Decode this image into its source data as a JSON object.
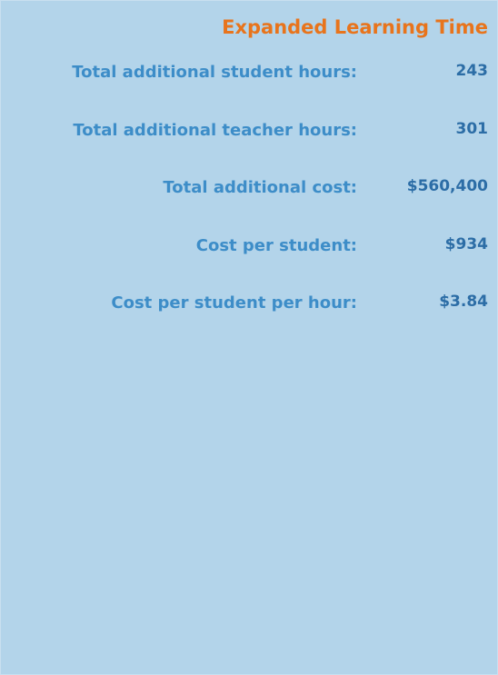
{
  "title": "Expanded Learning Time",
  "rows": [
    {
      "label": "Total additional student hours:",
      "value": "243"
    },
    {
      "label": "Total additional teacher hours:",
      "value": "301"
    },
    {
      "label": "Total additional cost:",
      "value": "$560,400"
    },
    {
      "label": "Cost per student:",
      "value": "$934"
    },
    {
      "label": "Cost per student per hour:",
      "value": "$3.84"
    }
  ]
}
